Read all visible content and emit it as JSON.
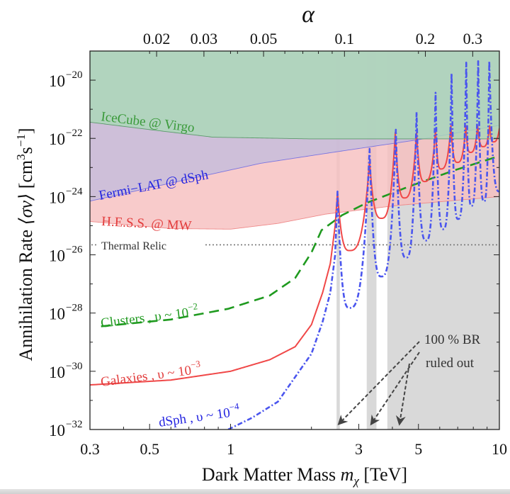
{
  "chart_data": {
    "type": "line",
    "xscale": "log",
    "yscale": "log",
    "xlim": [
      0.3,
      10
    ],
    "ylim": [
      1e-32,
      1e-19
    ],
    "grid": false,
    "xlabel": {
      "text": "Dark Matter Mass ",
      "var": "m",
      "sub": "χ",
      "unit": " [TeV]"
    },
    "ylabel": {
      "text": "Annihilation Rate ",
      "bracket": "⟨σv⟩",
      "unit_a": " [cm",
      "unit_a_sup": "3",
      "unit_b": "s",
      "unit_b_sup": "−1",
      "unit_c": "]"
    },
    "xticks": [
      {
        "value": 0.3,
        "label": "0.3"
      },
      {
        "value": 0.5,
        "label": "0.5"
      },
      {
        "value": 1,
        "label": "1"
      },
      {
        "value": 3,
        "label": "3"
      },
      {
        "value": 5,
        "label": "5"
      },
      {
        "value": 10,
        "label": "10"
      }
    ],
    "xminor": [
      0.4,
      0.6,
      0.7,
      0.8,
      0.9,
      2,
      4,
      6,
      7,
      8,
      9
    ],
    "yticks": [
      {
        "exp": -20,
        "base": "10",
        "sup": "−20"
      },
      {
        "exp": -22,
        "base": "10",
        "sup": "−22"
      },
      {
        "exp": -24,
        "base": "10",
        "sup": "−24"
      },
      {
        "exp": -26,
        "base": "10",
        "sup": "−26"
      },
      {
        "exp": -28,
        "base": "10",
        "sup": "−28"
      },
      {
        "exp": -30,
        "base": "10",
        "sup": "−30"
      },
      {
        "exp": -32,
        "base": "10",
        "sup": "−32"
      }
    ],
    "yminor_exps": [
      -19,
      -21,
      -23,
      -25,
      -27,
      -29,
      -31
    ],
    "top_axis": {
      "label": "α",
      "range": [
        0.0113,
        0.377
      ],
      "ticks": [
        {
          "value": 0.02,
          "label": "0.02"
        },
        {
          "value": 0.03,
          "label": "0.03"
        },
        {
          "value": 0.05,
          "label": "0.05"
        },
        {
          "value": 0.1,
          "label": "0.1"
        },
        {
          "value": 0.2,
          "label": "0.2"
        },
        {
          "value": 0.3,
          "label": "0.3"
        }
      ],
      "minor": [
        0.04,
        0.06,
        0.07,
        0.08,
        0.09
      ]
    },
    "constraints": [
      {
        "name": "H.E.S.S. @ MW",
        "color": "#e23c3c",
        "fill": "#f7bfbf",
        "line": "#ef8a8a",
        "points": [
          [
            0.3,
            1.4e-25
          ],
          [
            0.45,
            1e-25
          ],
          [
            0.6,
            8e-26
          ],
          [
            1,
            7.6e-26
          ],
          [
            1.5,
            1.2e-25
          ],
          [
            2.26,
            2.5e-25
          ],
          [
            4.2,
            5e-25
          ],
          [
            10,
            1e-24
          ]
        ]
      },
      {
        "name": "Fermi−LAT @ dSph",
        "color": "#2424e0",
        "fill": "#c4bcdc",
        "line": "#7a74e0",
        "points": [
          [
            0.3,
            7e-25
          ],
          [
            0.7,
            4e-24
          ],
          [
            1.3,
            1.4e-23
          ],
          [
            2.5,
            3.5e-23
          ],
          [
            5,
            9e-23
          ],
          [
            10,
            2.8e-22
          ]
        ]
      },
      {
        "name": "IceCube @ Virgo",
        "color": "#3a9a3a",
        "fill": "#abd8b8",
        "line": "#5c9a6c",
        "points": [
          [
            0.3,
            3.6e-22
          ],
          [
            0.5,
            2e-22
          ],
          [
            0.86,
            1.1e-22
          ],
          [
            2,
            9.6e-23
          ],
          [
            10,
            9.6e-23
          ]
        ]
      }
    ],
    "thermal_relic": {
      "name": "Thermal Relic",
      "value": 2.2e-26,
      "color": "#777777"
    },
    "excluded_bands": [
      [
        2.48,
        2.55
      ],
      [
        3.21,
        3.49
      ],
      [
        3.83,
        10
      ]
    ],
    "excluded_color": "#d9d9d9",
    "annotation": {
      "line1": "100 % BR",
      "line2": "ruled out",
      "arrow_targets_tev": [
        2.5,
        3.3,
        4.2
      ]
    },
    "series": [
      {
        "name": "Clusters , υ ~ 10",
        "exp": "−2",
        "color": "#1f9a1f",
        "style": "dashed",
        "points": [
          [
            0.33,
            3.5e-29
          ],
          [
            0.6,
            6e-29
          ],
          [
            0.98,
            1.4e-28
          ],
          [
            1.4,
            4e-28
          ],
          [
            1.74,
            1.6e-27
          ],
          [
            2.0,
            1.2e-26
          ],
          [
            2.18,
            7e-26
          ],
          [
            2.6,
            2.3e-25
          ],
          [
            3.2,
            6e-25
          ],
          [
            4.6,
            2.2e-24
          ],
          [
            6.8,
            8e-24
          ],
          [
            8.8,
            1.7e-23
          ],
          [
            9.6,
            2.2e-23
          ]
        ]
      },
      {
        "name": "Galaxies , υ ~ 10",
        "exp": "−3",
        "color": "#f04848",
        "style": "solid",
        "points": [
          [
            0.3,
            3.4e-31
          ],
          [
            0.6,
            5e-31
          ],
          [
            1,
            1e-30
          ],
          [
            1.4,
            2.5e-30
          ],
          [
            1.74,
            7e-30
          ],
          [
            2.0,
            4e-29
          ],
          [
            2.2,
            5e-28
          ],
          [
            2.35,
            5e-27
          ],
          [
            2.45,
            1e-25
          ],
          [
            2.5,
            1.4e-24
          ],
          [
            2.77,
            1.4e-26
          ],
          [
            3.29,
            1.7e-23
          ],
          [
            3.64,
            1.8e-25
          ],
          [
            4.1,
            1.6e-22
          ],
          [
            4.43,
            9e-25
          ],
          [
            4.92,
            1.6e-22
          ],
          [
            5.27,
            3.3e-24
          ],
          [
            5.79,
            2.1e-22
          ],
          [
            6.06,
            8.9e-24
          ],
          [
            6.6,
            2.7e-22
          ],
          [
            6.98,
            1.5e-23
          ],
          [
            7.5,
            2.7e-22
          ],
          [
            7.8,
            3.3e-23
          ],
          [
            8.3,
            2.7e-22
          ],
          [
            8.7,
            5.2e-23
          ],
          [
            9.2,
            2.7e-22
          ],
          [
            9.5,
            7.6e-23
          ],
          [
            10,
            2.2e-22
          ]
        ]
      },
      {
        "name": "dSph , υ ~ 10",
        "exp": "−4",
        "color": "#4a55ee",
        "style": "dash-dot",
        "points": [
          [
            0.98,
            1e-32
          ],
          [
            1.2,
            2.5e-32
          ],
          [
            1.5,
            9e-32
          ],
          [
            1.8,
            1e-30
          ],
          [
            2.0,
            4e-30
          ],
          [
            2.2,
            5e-29
          ],
          [
            2.35,
            5e-28
          ],
          [
            2.45,
            1e-26
          ],
          [
            2.5,
            1.5e-24
          ],
          [
            2.77,
            1.5e-28
          ],
          [
            3.29,
            4.4e-23
          ],
          [
            3.64,
            1.8e-27
          ],
          [
            4.12,
            2e-22
          ],
          [
            4.5,
            8e-27
          ],
          [
            4.92,
            8e-22
          ],
          [
            5.34,
            3.1e-26
          ],
          [
            5.79,
            3.7e-21
          ],
          [
            6.18,
            7.6e-26
          ],
          [
            6.64,
            1.7e-20
          ],
          [
            7.02,
            1.7e-25
          ],
          [
            7.53,
            4e-20
          ],
          [
            7.87,
            4.8e-25
          ],
          [
            8.34,
            4.5e-20
          ],
          [
            8.77,
            6.9e-25
          ],
          [
            9.17,
            4.5e-20
          ],
          [
            10,
            1.5e-24
          ]
        ]
      }
    ]
  }
}
